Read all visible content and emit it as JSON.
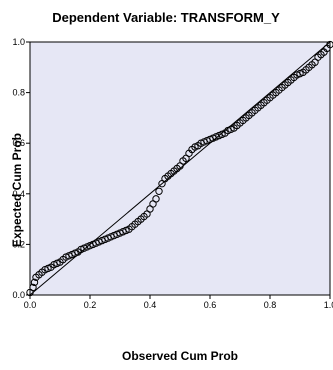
{
  "chart_data": {
    "type": "scatter",
    "title": "Dependent Variable: TRANSFORM_Y",
    "xlabel": "Observed Cum Prob",
    "ylabel": "Expected Cum Prob",
    "xlim": [
      0.0,
      1.0
    ],
    "ylim": [
      0.0,
      1.0
    ],
    "x_ticks": [
      "0.0",
      "0.2",
      "0.4",
      "0.6",
      "0.8",
      "1.0"
    ],
    "y_ticks": [
      "0.0",
      "0.2",
      "0.4",
      "0.6",
      "0.8",
      "1.0"
    ],
    "grid": false,
    "reference_line": {
      "from": [
        0.0,
        0.0
      ],
      "to": [
        1.0,
        1.0
      ]
    },
    "series": [
      {
        "points": [
          [
            0.0,
            0.01
          ],
          [
            0.01,
            0.03
          ],
          [
            0.015,
            0.05
          ],
          [
            0.02,
            0.07
          ],
          [
            0.03,
            0.08
          ],
          [
            0.04,
            0.09
          ],
          [
            0.05,
            0.1
          ],
          [
            0.06,
            0.105
          ],
          [
            0.07,
            0.11
          ],
          [
            0.08,
            0.12
          ],
          [
            0.09,
            0.125
          ],
          [
            0.1,
            0.13
          ],
          [
            0.11,
            0.14
          ],
          [
            0.12,
            0.15
          ],
          [
            0.13,
            0.155
          ],
          [
            0.14,
            0.16
          ],
          [
            0.15,
            0.165
          ],
          [
            0.16,
            0.17
          ],
          [
            0.17,
            0.18
          ],
          [
            0.18,
            0.185
          ],
          [
            0.19,
            0.19
          ],
          [
            0.2,
            0.195
          ],
          [
            0.21,
            0.2
          ],
          [
            0.22,
            0.205
          ],
          [
            0.23,
            0.21
          ],
          [
            0.24,
            0.215
          ],
          [
            0.25,
            0.22
          ],
          [
            0.26,
            0.225
          ],
          [
            0.27,
            0.23
          ],
          [
            0.28,
            0.235
          ],
          [
            0.29,
            0.24
          ],
          [
            0.3,
            0.245
          ],
          [
            0.31,
            0.25
          ],
          [
            0.32,
            0.255
          ],
          [
            0.33,
            0.26
          ],
          [
            0.34,
            0.27
          ],
          [
            0.35,
            0.28
          ],
          [
            0.36,
            0.29
          ],
          [
            0.37,
            0.3
          ],
          [
            0.38,
            0.31
          ],
          [
            0.39,
            0.32
          ],
          [
            0.4,
            0.34
          ],
          [
            0.41,
            0.36
          ],
          [
            0.42,
            0.38
          ],
          [
            0.43,
            0.41
          ],
          [
            0.44,
            0.44
          ],
          [
            0.45,
            0.46
          ],
          [
            0.46,
            0.47
          ],
          [
            0.47,
            0.48
          ],
          [
            0.48,
            0.49
          ],
          [
            0.49,
            0.5
          ],
          [
            0.5,
            0.51
          ],
          [
            0.51,
            0.53
          ],
          [
            0.52,
            0.54
          ],
          [
            0.53,
            0.56
          ],
          [
            0.54,
            0.575
          ],
          [
            0.55,
            0.585
          ],
          [
            0.56,
            0.59
          ],
          [
            0.57,
            0.6
          ],
          [
            0.58,
            0.605
          ],
          [
            0.59,
            0.61
          ],
          [
            0.6,
            0.615
          ],
          [
            0.61,
            0.62
          ],
          [
            0.62,
            0.625
          ],
          [
            0.63,
            0.63
          ],
          [
            0.64,
            0.635
          ],
          [
            0.65,
            0.64
          ],
          [
            0.66,
            0.65
          ],
          [
            0.67,
            0.655
          ],
          [
            0.68,
            0.66
          ],
          [
            0.69,
            0.67
          ],
          [
            0.7,
            0.68
          ],
          [
            0.71,
            0.69
          ],
          [
            0.72,
            0.7
          ],
          [
            0.73,
            0.71
          ],
          [
            0.74,
            0.72
          ],
          [
            0.75,
            0.73
          ],
          [
            0.76,
            0.74
          ],
          [
            0.77,
            0.75
          ],
          [
            0.78,
            0.76
          ],
          [
            0.79,
            0.77
          ],
          [
            0.8,
            0.78
          ],
          [
            0.81,
            0.79
          ],
          [
            0.82,
            0.8
          ],
          [
            0.83,
            0.81
          ],
          [
            0.84,
            0.82
          ],
          [
            0.85,
            0.83
          ],
          [
            0.86,
            0.84
          ],
          [
            0.87,
            0.85
          ],
          [
            0.88,
            0.86
          ],
          [
            0.89,
            0.87
          ],
          [
            0.9,
            0.875
          ],
          [
            0.91,
            0.88
          ],
          [
            0.92,
            0.89
          ],
          [
            0.93,
            0.9
          ],
          [
            0.94,
            0.91
          ],
          [
            0.95,
            0.92
          ],
          [
            0.96,
            0.94
          ],
          [
            0.97,
            0.95
          ],
          [
            0.98,
            0.96
          ],
          [
            0.99,
            0.975
          ],
          [
            1.0,
            0.99
          ]
        ]
      }
    ]
  }
}
